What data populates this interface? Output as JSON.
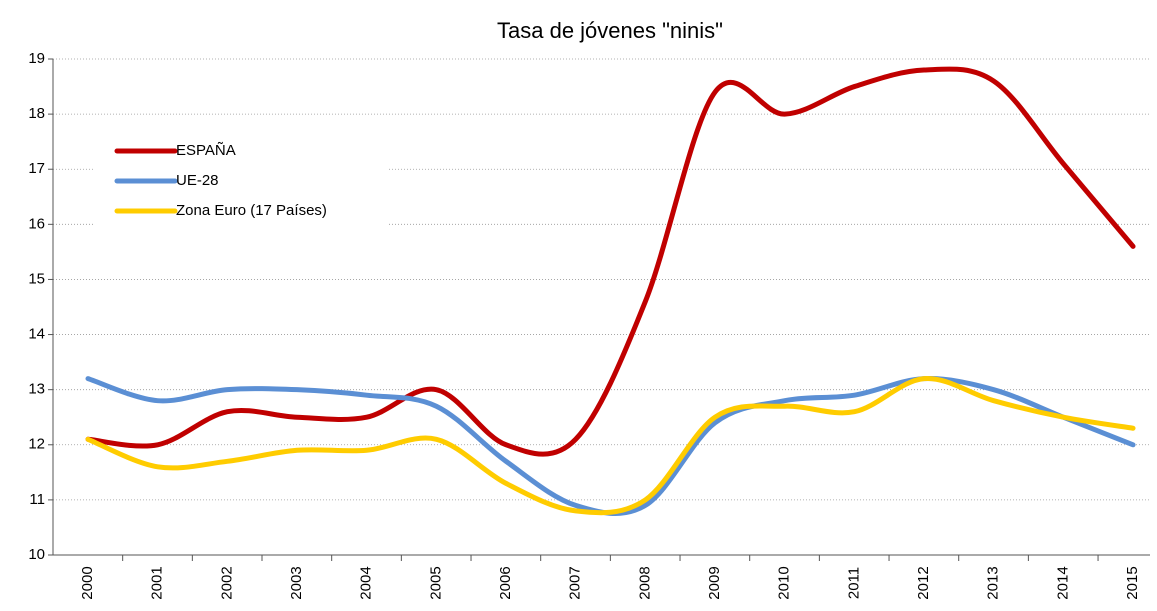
{
  "chart_data": {
    "type": "line",
    "title": "Tasa de jóvenes \"ninis\"",
    "categories": [
      "2000",
      "2001",
      "2002",
      "2003",
      "2004",
      "2005",
      "2006",
      "2007",
      "2008",
      "2009",
      "2010",
      "2011",
      "2012",
      "2013",
      "2014",
      "2015"
    ],
    "series": [
      {
        "name": "ESPAÑA",
        "color": "#c00000",
        "values": [
          12.1,
          12.0,
          12.6,
          12.5,
          12.5,
          13.0,
          12.0,
          12.1,
          14.6,
          18.4,
          18.0,
          18.5,
          18.8,
          18.6,
          17.1,
          15.6
        ]
      },
      {
        "name": "UE-28",
        "color": "#5b8fd4",
        "values": [
          13.2,
          12.8,
          13.0,
          13.0,
          12.9,
          12.7,
          11.7,
          10.9,
          10.9,
          12.4,
          12.8,
          12.9,
          13.2,
          13.0,
          12.5,
          12.0
        ]
      },
      {
        "name": "Zona Euro (17 Países)",
        "color": "#ffcc00",
        "values": [
          12.1,
          11.6,
          11.7,
          11.9,
          11.9,
          12.1,
          11.3,
          10.8,
          11.0,
          12.5,
          12.7,
          12.6,
          13.2,
          12.8,
          12.5,
          12.3
        ]
      }
    ],
    "ylim": [
      10,
      19
    ],
    "yticks": [
      10,
      11,
      12,
      13,
      14,
      15,
      16,
      17,
      18,
      19
    ],
    "grid": true,
    "legend": "upper left"
  }
}
